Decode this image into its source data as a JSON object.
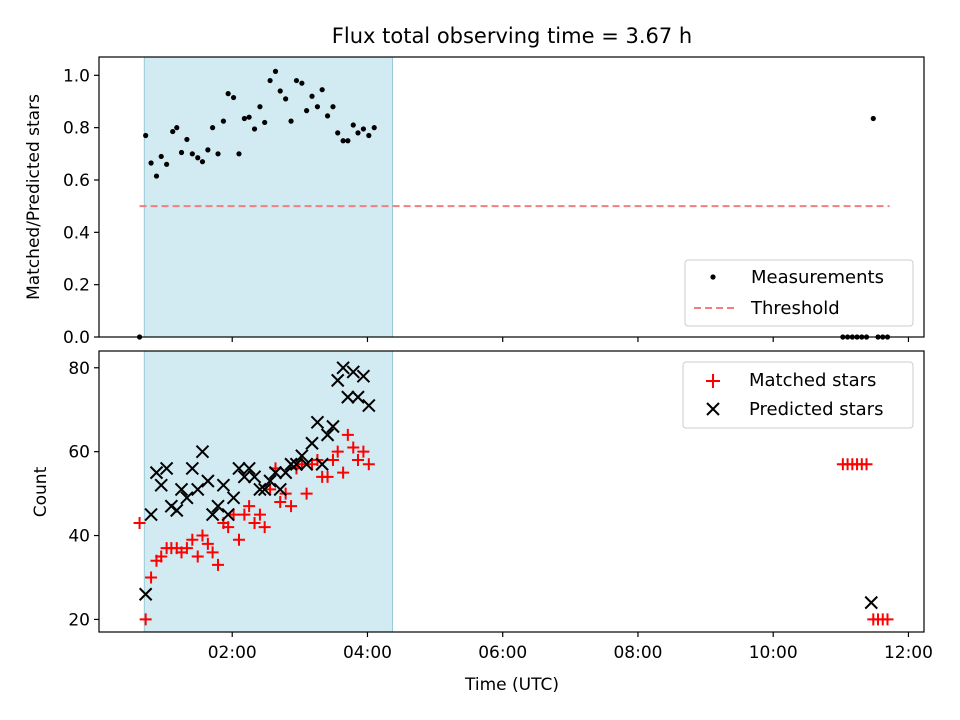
{
  "chart_data": [
    {
      "type": "scatter",
      "title": "Flux total observing time = 3.67 h",
      "ylabel": "Matched/Predicted stars",
      "xlim": [
        0.03,
        12.23
      ],
      "ylim": [
        0.0,
        1.07
      ],
      "x_unit": "hours UTC",
      "y_ticks": [
        "0.0",
        "0.2",
        "0.4",
        "0.6",
        "0.8",
        "1.0"
      ],
      "y_tick_values": [
        0.0,
        0.2,
        0.4,
        0.6,
        0.8,
        1.0
      ],
      "shaded_interval": [
        0.7,
        4.37
      ],
      "legend_position": "lower right",
      "series": [
        {
          "name": "Measurements",
          "marker": "dot",
          "color": "#000000",
          "points": [
            [
              0.63,
              0.0
            ],
            [
              0.72,
              0.77
            ],
            [
              0.8,
              0.665
            ],
            [
              0.88,
              0.615
            ],
            [
              0.95,
              0.69
            ],
            [
              1.03,
              0.66
            ],
            [
              1.12,
              0.785
            ],
            [
              1.18,
              0.8
            ],
            [
              1.25,
              0.705
            ],
            [
              1.33,
              0.755
            ],
            [
              1.41,
              0.7
            ],
            [
              1.49,
              0.685
            ],
            [
              1.56,
              0.67
            ],
            [
              1.64,
              0.715
            ],
            [
              1.71,
              0.8
            ],
            [
              1.79,
              0.7
            ],
            [
              1.87,
              0.825
            ],
            [
              1.94,
              0.93
            ],
            [
              2.02,
              0.915
            ],
            [
              2.1,
              0.7
            ],
            [
              2.18,
              0.835
            ],
            [
              2.25,
              0.84
            ],
            [
              2.33,
              0.795
            ],
            [
              2.41,
              0.88
            ],
            [
              2.48,
              0.82
            ],
            [
              2.56,
              0.98
            ],
            [
              2.64,
              1.015
            ],
            [
              2.71,
              0.94
            ],
            [
              2.79,
              0.91
            ],
            [
              2.87,
              0.825
            ],
            [
              2.95,
              0.98
            ],
            [
              3.03,
              0.97
            ],
            [
              3.1,
              0.865
            ],
            [
              3.18,
              0.92
            ],
            [
              3.26,
              0.88
            ],
            [
              3.33,
              0.945
            ],
            [
              3.41,
              0.845
            ],
            [
              3.49,
              0.88
            ],
            [
              3.56,
              0.78
            ],
            [
              3.64,
              0.75
            ],
            [
              3.71,
              0.75
            ],
            [
              3.79,
              0.81
            ],
            [
              3.86,
              0.78
            ],
            [
              3.94,
              0.795
            ],
            [
              4.02,
              0.77
            ],
            [
              4.1,
              0.8
            ],
            [
              11.03,
              0.0
            ],
            [
              11.1,
              0.0
            ],
            [
              11.17,
              0.0
            ],
            [
              11.24,
              0.0
            ],
            [
              11.31,
              0.0
            ],
            [
              11.38,
              0.0
            ],
            [
              11.48,
              0.835
            ],
            [
              11.55,
              0.0
            ],
            [
              11.62,
              0.0
            ],
            [
              11.69,
              0.0
            ]
          ]
        },
        {
          "name": "Threshold",
          "marker": "dashed-line",
          "color": "#f08080",
          "points": [
            [
              0.63,
              0.5
            ],
            [
              11.72,
              0.5
            ]
          ]
        }
      ]
    },
    {
      "type": "scatter",
      "xlabel": "Time (UTC)",
      "ylabel": "Count",
      "xlim": [
        0.03,
        12.23
      ],
      "ylim": [
        17,
        84
      ],
      "x_ticks": [
        "02:00",
        "04:00",
        "06:00",
        "08:00",
        "10:00",
        "12:00"
      ],
      "x_tick_values": [
        2,
        4,
        6,
        8,
        10,
        12
      ],
      "y_ticks": [
        "20",
        "40",
        "60",
        "80"
      ],
      "y_tick_values": [
        20,
        40,
        60,
        80
      ],
      "shaded_interval": [
        0.7,
        4.37
      ],
      "legend_position": "upper right",
      "series": [
        {
          "name": "Matched stars",
          "marker": "plus",
          "color": "#ff0000",
          "points": [
            [
              0.63,
              43
            ],
            [
              0.72,
              20
            ],
            [
              0.8,
              30
            ],
            [
              0.88,
              34
            ],
            [
              0.95,
              35
            ],
            [
              1.03,
              37
            ],
            [
              1.1,
              37
            ],
            [
              1.18,
              37
            ],
            [
              1.25,
              36
            ],
            [
              1.33,
              37
            ],
            [
              1.41,
              39
            ],
            [
              1.49,
              35
            ],
            [
              1.56,
              40
            ],
            [
              1.64,
              38
            ],
            [
              1.71,
              36
            ],
            [
              1.79,
              33
            ],
            [
              1.87,
              43
            ],
            [
              1.94,
              42
            ],
            [
              2.02,
              45
            ],
            [
              2.1,
              39
            ],
            [
              2.18,
              45
            ],
            [
              2.25,
              47
            ],
            [
              2.33,
              43
            ],
            [
              2.41,
              45
            ],
            [
              2.48,
              42
            ],
            [
              2.56,
              51
            ],
            [
              2.64,
              56
            ],
            [
              2.71,
              48
            ],
            [
              2.79,
              50
            ],
            [
              2.87,
              47
            ],
            [
              2.95,
              56
            ],
            [
              3.03,
              57
            ],
            [
              3.1,
              50
            ],
            [
              3.18,
              57
            ],
            [
              3.26,
              58
            ],
            [
              3.33,
              54
            ],
            [
              3.41,
              54
            ],
            [
              3.49,
              58
            ],
            [
              3.56,
              60
            ],
            [
              3.64,
              55
            ],
            [
              3.71,
              64
            ],
            [
              3.79,
              61
            ],
            [
              3.86,
              58
            ],
            [
              3.94,
              60
            ],
            [
              4.02,
              57
            ],
            [
              11.03,
              57
            ],
            [
              11.1,
              57
            ],
            [
              11.17,
              57
            ],
            [
              11.24,
              57
            ],
            [
              11.31,
              57
            ],
            [
              11.38,
              57
            ],
            [
              11.48,
              20
            ],
            [
              11.55,
              20
            ],
            [
              11.62,
              20
            ],
            [
              11.69,
              20
            ]
          ]
        },
        {
          "name": "Predicted stars",
          "marker": "x",
          "color": "#000000",
          "points": [
            [
              0.72,
              26
            ],
            [
              0.8,
              45
            ],
            [
              0.88,
              55
            ],
            [
              0.95,
              52
            ],
            [
              1.03,
              56
            ],
            [
              1.1,
              47
            ],
            [
              1.18,
              46
            ],
            [
              1.25,
              51
            ],
            [
              1.33,
              49
            ],
            [
              1.41,
              56
            ],
            [
              1.49,
              51
            ],
            [
              1.56,
              60
            ],
            [
              1.64,
              53
            ],
            [
              1.71,
              45
            ],
            [
              1.79,
              47
            ],
            [
              1.87,
              52
            ],
            [
              1.94,
              45
            ],
            [
              2.02,
              49
            ],
            [
              2.1,
              56
            ],
            [
              2.18,
              54
            ],
            [
              2.25,
              56
            ],
            [
              2.33,
              54
            ],
            [
              2.41,
              51
            ],
            [
              2.48,
              51
            ],
            [
              2.56,
              53
            ],
            [
              2.64,
              55
            ],
            [
              2.71,
              51
            ],
            [
              2.79,
              55
            ],
            [
              2.87,
              57
            ],
            [
              2.95,
              57
            ],
            [
              3.03,
              59
            ],
            [
              3.1,
              57
            ],
            [
              3.18,
              62
            ],
            [
              3.26,
              67
            ],
            [
              3.33,
              57
            ],
            [
              3.41,
              64
            ],
            [
              3.49,
              66
            ],
            [
              3.56,
              77
            ],
            [
              3.64,
              80
            ],
            [
              3.71,
              73
            ],
            [
              3.79,
              79
            ],
            [
              3.86,
              73
            ],
            [
              3.94,
              78
            ],
            [
              4.02,
              71
            ],
            [
              11.45,
              24
            ]
          ]
        }
      ]
    }
  ]
}
